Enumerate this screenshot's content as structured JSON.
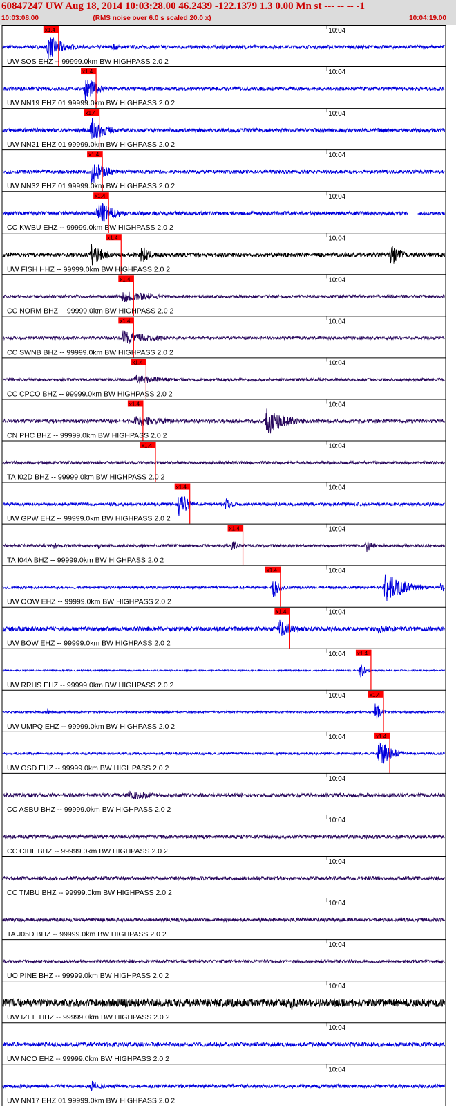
{
  "header": {
    "title": "60847247 UW Aug 18, 2014 10:03:28.00   46.2439 -122.1379  1.3 0.00 Mn st --- -- --  -1",
    "start_time": "10:03:08.00",
    "note": "(RMS noise over 6.0 s scaled 20.0 x)",
    "end_time": "10:04:19.00"
  },
  "chart_data": {
    "type": "line",
    "title": "60847247 UW Aug 18, 2014 10:03:28.00   46.2439 -122.1379  1.3 0.00 Mn st --- -- --  -1",
    "x_axis": {
      "start": "10:03:08.00",
      "end": "10:04:19.00",
      "minute_tick_label": "10:04",
      "minute_tick_seconds": 52
    },
    "duration_seconds": 71,
    "pick_label": "x1.4",
    "filter": "BW  HIGHPASS  2.0  2",
    "colors": {
      "blue": "#0000dd",
      "black": "#000000",
      "purple": "#2a0a5e",
      "pick": "#ff0000"
    },
    "series": [
      {
        "name": "UW SOS EHZ -- 99999.0km BW  HIGHPASS  2.0  2",
        "color": "blue",
        "pick_s": 7.5,
        "noise": 0.1,
        "bursts": [
          [
            7.0,
            14.0,
            0.85,
            2.5
          ],
          [
            17.5,
            4.0,
            0.3,
            1.0
          ]
        ]
      },
      {
        "name": "UW NN19 EHZ 01 99999.0km BW  HIGHPASS  2.0  2",
        "color": "blue",
        "pick_s": 13.5,
        "noise": 0.1,
        "bursts": [
          [
            13.0,
            10.0,
            0.9,
            2.0
          ]
        ]
      },
      {
        "name": "UW NN21 EHZ 01 99999.0km BW  HIGHPASS  2.0  2",
        "color": "blue",
        "pick_s": 14.0,
        "noise": 0.1,
        "bursts": [
          [
            14.0,
            14.0,
            1.0,
            2.0
          ]
        ]
      },
      {
        "name": "UW NN32 EHZ 01 99999.0km BW  HIGHPASS  2.0  2",
        "color": "blue",
        "pick_s": 14.5,
        "noise": 0.1,
        "bursts": [
          [
            14.0,
            14.0,
            0.8,
            2.5
          ]
        ]
      },
      {
        "name": "CC KWBU EHZ -- 99999.0km BW  HIGHPASS  2.0  2",
        "color": "blue",
        "pick_s": 15.5,
        "noise": 0.1,
        "bursts": [
          [
            15.0,
            12.0,
            0.9,
            2.5
          ]
        ],
        "gaps": [
          [
            65.0,
            66.5
          ]
        ]
      },
      {
        "name": "UW FISH HHZ -- 99999.0km BW  HIGHPASS  2.0  2",
        "color": "black",
        "pick_s": 17.5,
        "noise": 0.12,
        "bursts": [
          [
            14.0,
            6.0,
            0.8,
            2.0
          ],
          [
            22.0,
            4.0,
            0.7,
            1.5
          ],
          [
            62.0,
            4.0,
            0.9,
            1.5
          ]
        ]
      },
      {
        "name": "CC NORM BHZ -- 99999.0km BW  HIGHPASS  2.0  2",
        "color": "purple",
        "pick_s": 19.5,
        "noise": 0.08,
        "bursts": [
          [
            19.0,
            14.0,
            0.4,
            5.0
          ]
        ]
      },
      {
        "name": "CC SWNB BHZ -- 99999.0km BW  HIGHPASS  2.0  2",
        "color": "purple",
        "pick_s": 19.5,
        "noise": 0.08,
        "bursts": [
          [
            19.0,
            14.0,
            0.45,
            5.0
          ]
        ]
      },
      {
        "name": "CC CPCO BHZ -- 99999.0km BW  HIGHPASS  2.0  2",
        "color": "purple",
        "pick_s": 21.5,
        "noise": 0.08,
        "bursts": [
          [
            21.0,
            12.0,
            0.3,
            5.0
          ]
        ]
      },
      {
        "name": "CN PHC BHZ -- 99999.0km BW  HIGHPASS  2.0  2",
        "color": "purple",
        "pick_s": 21.0,
        "noise": 0.1,
        "bursts": [
          [
            21.0,
            40.0,
            0.35,
            6.0
          ],
          [
            42.0,
            8.0,
            0.95,
            3.0
          ]
        ]
      },
      {
        "name": "TA I02D BHZ -- 99999.0km BW  HIGHPASS  2.0  2",
        "color": "purple",
        "pick_s": 23.0,
        "noise": 0.08,
        "bursts": []
      },
      {
        "name": "UW GPW EHZ -- 99999.0km BW  HIGHPASS  2.0  2",
        "color": "blue",
        "pick_s": 28.5,
        "noise": 0.08,
        "bursts": [
          [
            28.0,
            4.0,
            1.0,
            1.5
          ],
          [
            35.5,
            2.5,
            0.5,
            1.0
          ]
        ]
      },
      {
        "name": "TA I04A BHZ -- 99999.0km BW  HIGHPASS  2.0  2",
        "color": "purple",
        "pick_s": 37.0,
        "noise": 0.08,
        "bursts": [
          [
            8.0,
            3.0,
            0.3,
            1.0
          ],
          [
            15.0,
            3.0,
            0.25,
            1.0
          ],
          [
            22.0,
            2.5,
            0.3,
            1.0
          ],
          [
            36.5,
            2.5,
            0.45,
            1.0
          ],
          [
            58.0,
            3.0,
            0.55,
            1.0
          ]
        ]
      },
      {
        "name": "UW OOW EHZ -- 99999.0km BW  HIGHPASS  2.0  2",
        "color": "blue",
        "pick_s": 43.0,
        "noise": 0.07,
        "bursts": [
          [
            43.0,
            3.0,
            1.0,
            1.0
          ],
          [
            61.0,
            7.5,
            1.0,
            3.0
          ],
          [
            70.0,
            1.0,
            0.8,
            0.5
          ]
        ]
      },
      {
        "name": "UW BOW EHZ -- 99999.0km BW  HIGHPASS  2.0  2",
        "color": "blue",
        "pick_s": 44.5,
        "noise": 0.12,
        "bursts": [
          [
            44.0,
            8.0,
            0.75,
            2.0
          ],
          [
            60.0,
            5.0,
            0.35,
            2.0
          ]
        ]
      },
      {
        "name": "UW RRHS EHZ -- 99999.0km BW  HIGHPASS  2.0  2",
        "color": "blue",
        "pick_s": 57.5,
        "noise": 0.04,
        "bursts": [
          [
            57.0,
            2.0,
            0.7,
            0.8
          ]
        ]
      },
      {
        "name": "UW UMPQ EHZ -- 99999.0km BW  HIGHPASS  2.0  2",
        "color": "blue",
        "pick_s": 59.5,
        "noise": 0.05,
        "bursts": [
          [
            59.5,
            2.0,
            1.0,
            0.8
          ],
          [
            7.0,
            0.8,
            0.7,
            0.3
          ]
        ]
      },
      {
        "name": "UW OSD EHZ -- 99999.0km BW  HIGHPASS  2.0  2",
        "color": "blue",
        "pick_s": 60.5,
        "noise": 0.06,
        "bursts": [
          [
            60.0,
            5.0,
            1.0,
            2.0
          ]
        ]
      },
      {
        "name": "CC ASBU BHZ -- 99999.0km BW  HIGHPASS  2.0  2",
        "color": "purple",
        "pick_s": null,
        "noise": 0.1,
        "bursts": [
          [
            20.0,
            10.0,
            0.3,
            5.0
          ]
        ]
      },
      {
        "name": "CC CIHL BHZ -- 99999.0km BW  HIGHPASS  2.0  2",
        "color": "purple",
        "pick_s": null,
        "noise": 0.1,
        "bursts": []
      },
      {
        "name": "CC TMBU BHZ -- 99999.0km BW  HIGHPASS  2.0  2",
        "color": "purple",
        "pick_s": null,
        "noise": 0.1,
        "bursts": []
      },
      {
        "name": "TA J05D BHZ -- 99999.0km BW  HIGHPASS  2.0  2",
        "color": "purple",
        "pick_s": null,
        "noise": 0.09,
        "bursts": []
      },
      {
        "name": "UO PINE BHZ -- 99999.0km BW  HIGHPASS  2.0  2",
        "color": "purple",
        "pick_s": null,
        "noise": 0.08,
        "bursts": []
      },
      {
        "name": "UW IZEE HHZ -- 99999.0km BW  HIGHPASS  2.0  2",
        "color": "black",
        "pick_s": null,
        "noise": 0.22,
        "bursts": [
          [
            46.0,
            2.5,
            0.8,
            0.8
          ]
        ]
      },
      {
        "name": "UW NCO EHZ -- 99999.0km BW  HIGHPASS  2.0  2",
        "color": "blue",
        "pick_s": null,
        "noise": 0.12,
        "bursts": []
      },
      {
        "name": "UW NN17 EHZ 01 99999.0km BW  HIGHPASS  2.0  2",
        "color": "blue",
        "pick_s": null,
        "noise": 0.1,
        "bursts": [
          [
            14.0,
            6.0,
            0.4,
            2.0
          ]
        ]
      }
    ]
  }
}
